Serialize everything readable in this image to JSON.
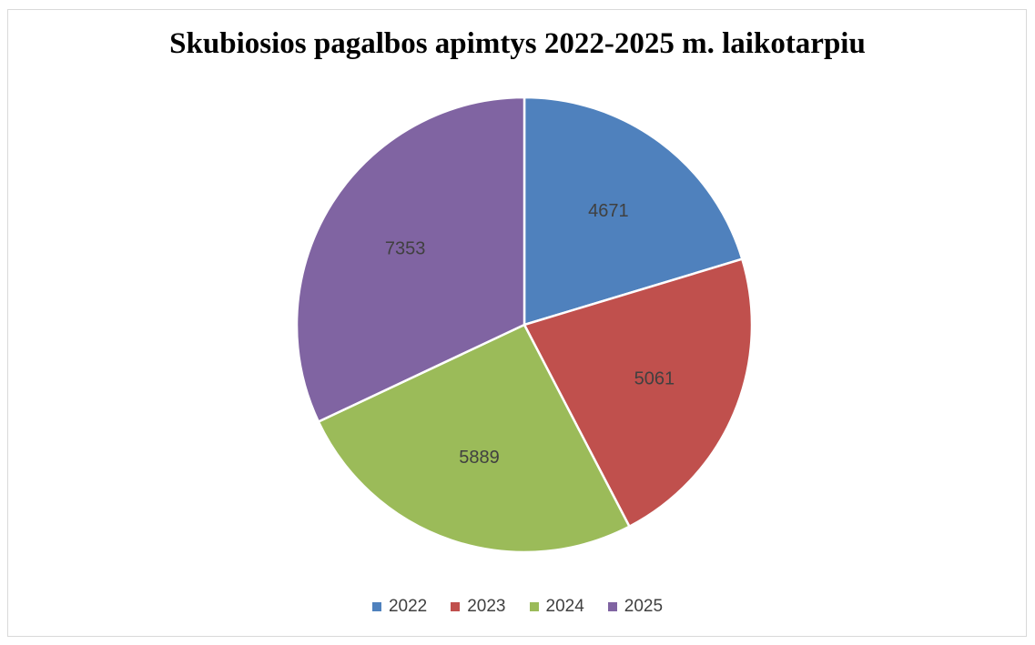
{
  "chart_data": {
    "type": "pie",
    "title": "Skubiosios pagalbos apimtys 2022-2025 m. laikotarpiu",
    "categories": [
      "2022",
      "2023",
      "2024",
      "2025"
    ],
    "values": [
      4671,
      5061,
      5889,
      7353
    ],
    "data_labels": [
      "4671",
      "5061",
      "5889",
      "7353"
    ],
    "colors": [
      "#4f81bd",
      "#c0504d",
      "#9bbb59",
      "#8064a2"
    ],
    "start_angle": "12 o'clock",
    "direction": "clockwise",
    "legend": {
      "position": "bottom",
      "entries": [
        "2022",
        "2023",
        "2024",
        "2025"
      ]
    }
  }
}
